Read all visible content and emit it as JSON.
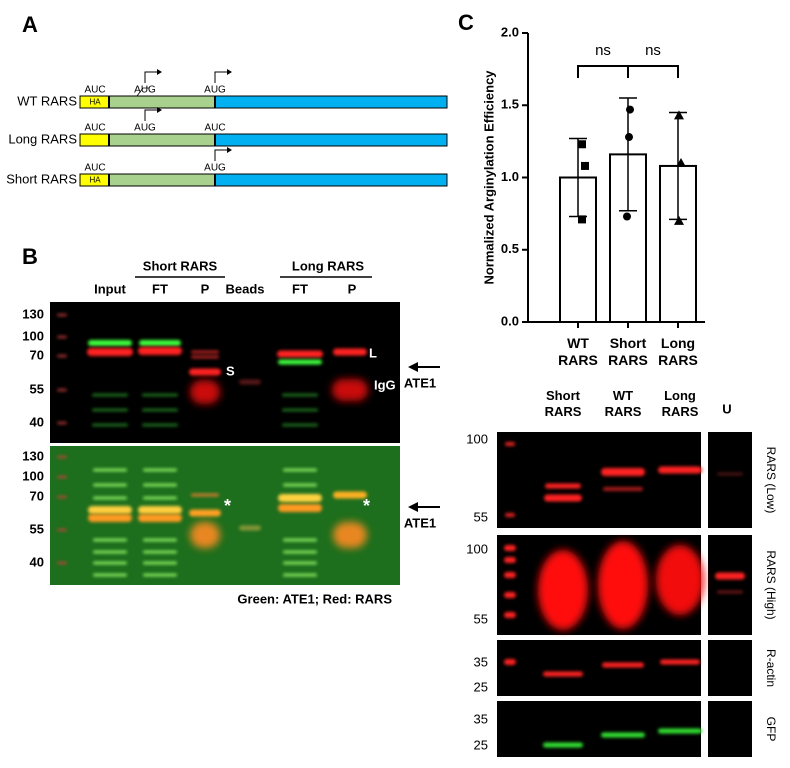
{
  "panel_a": {
    "label": "A",
    "constructs": [
      {
        "name": "WT RARS",
        "tag": "HA",
        "sites": [
          "AUC",
          "AUG",
          "AUG"
        ]
      },
      {
        "name": "Long RARS",
        "sites": [
          "AUC",
          "AUG",
          "AUC"
        ]
      },
      {
        "name": "Short RARS",
        "tag": "HA",
        "sites": [
          "AUC",
          "AUG"
        ]
      }
    ]
  },
  "panel_b": {
    "label": "B",
    "groups": [
      "Short RARS",
      "Long RARS"
    ],
    "lanes": [
      "Input",
      "FT",
      "P",
      "Beads",
      "FT",
      "P"
    ],
    "markers": [
      130,
      100,
      70,
      55,
      40
    ],
    "band_labels": [
      "S",
      "L",
      "IgG"
    ],
    "arrow_label": "ATE1",
    "star": "*",
    "caption": "Green: ATE1; Red: RARS"
  },
  "panel_c": {
    "label": "C"
  },
  "chart_data": {
    "type": "bar",
    "y_label": "Normalized Arginylation Efficiency",
    "categories": [
      "WT RARS",
      "Short RARS",
      "Long RARS"
    ],
    "values": [
      1.0,
      1.16,
      1.08
    ],
    "errors": [
      0.27,
      0.39,
      0.37
    ],
    "points": [
      [
        1.23,
        1.08,
        0.71
      ],
      [
        1.47,
        1.28,
        0.73
      ],
      [
        1.43,
        1.1,
        0.7
      ]
    ],
    "annotations": [
      "ns",
      "ns"
    ],
    "color": "#ffffff",
    "ylim": [
      0,
      2
    ],
    "yticks": [
      {
        "value": 0,
        "label": "0.0"
      },
      {
        "value": 0.5,
        "label": "0.5"
      },
      {
        "value": 1,
        "label": "1.0"
      },
      {
        "value": 1.5,
        "label": "1.5"
      },
      {
        "value": 2,
        "label": "2.0"
      }
    ]
  },
  "panel_d": {
    "lanes": [
      "Short RARS",
      "WT RARS",
      "Long RARS",
      "U"
    ],
    "blots": [
      {
        "name": "RARS (Low)",
        "markers": [
          100,
          55
        ]
      },
      {
        "name": "RARS (High)",
        "markers": [
          100,
          55
        ]
      },
      {
        "name": "R-actin",
        "markers": [
          35,
          25
        ]
      },
      {
        "name": "GFP",
        "markers": [
          35,
          25
        ]
      }
    ]
  }
}
